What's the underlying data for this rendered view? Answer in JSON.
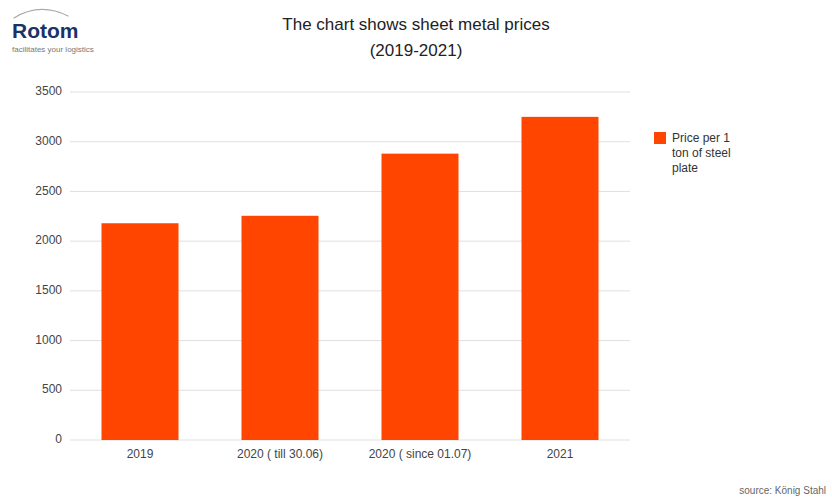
{
  "chart_data": {
    "type": "bar",
    "title": "The chart shows sheet metal prices",
    "subtitle": "(2019-2021)",
    "annotations": [
      "source: König Stahl",
      "Rotom",
      "facilitates your logistics"
    ],
    "categories": [
      "2019",
      "2020 ( till 30.06)",
      "2020 ( since 01.07)",
      "2021"
    ],
    "series": [
      {
        "name": "Price per 1\nton of steel\nplate",
        "color": "#FF4500",
        "values": [
          2180,
          2255,
          2880,
          3250
        ]
      }
    ],
    "ylim": [
      0,
      3500
    ],
    "yticks": [
      0,
      500,
      1000,
      1500,
      2000,
      2500,
      3000,
      3500
    ],
    "grid": true,
    "legend": "right"
  }
}
